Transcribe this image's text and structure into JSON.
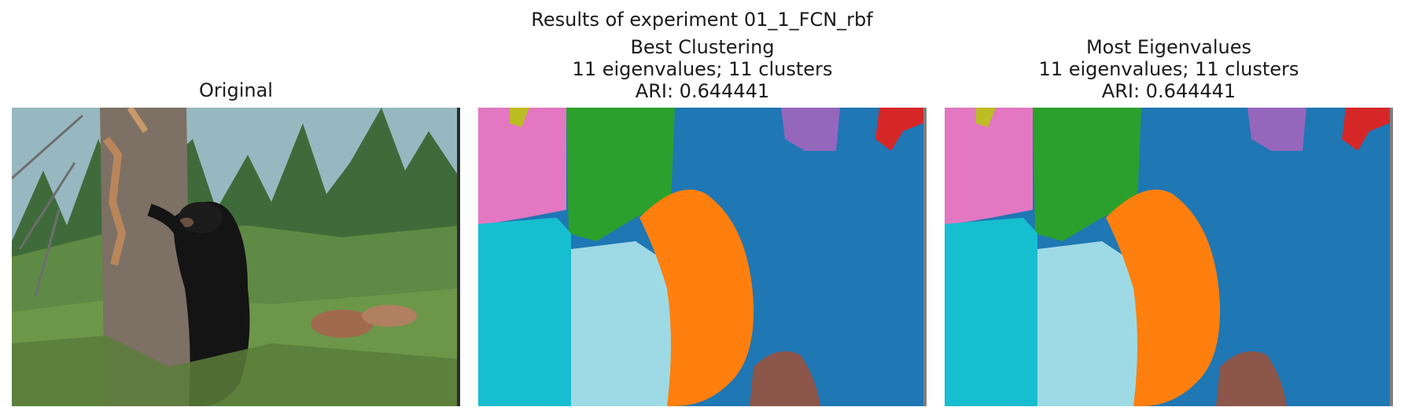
{
  "figure": {
    "suptitle": "Results of experiment 01_1_FCN_rbf",
    "panels": [
      {
        "title_lines": [
          "Original"
        ],
        "kind": "photo"
      },
      {
        "title_lines": [
          "Best Clustering",
          "11 eigenvalues; 11 clusters",
          "ARI: 0.644441"
        ],
        "kind": "segmentation"
      },
      {
        "title_lines": [
          "Most Eigenvalues",
          "11 eigenvalues; 11 clusters",
          "ARI: 0.644441"
        ],
        "kind": "segmentation"
      }
    ]
  },
  "palette": {
    "blue": "#1f77b4",
    "orange": "#ff7f0e",
    "green": "#2ca02c",
    "red": "#d62728",
    "purple": "#9467bd",
    "brown": "#8c564b",
    "pink": "#e377c2",
    "olive": "#bcbd22",
    "cyan": "#17becf",
    "light_blue": "#9edae5",
    "sky": "#a2c0d8",
    "foliage": "#5f8a45",
    "bark": "#7d7064",
    "bear": "#141414"
  }
}
